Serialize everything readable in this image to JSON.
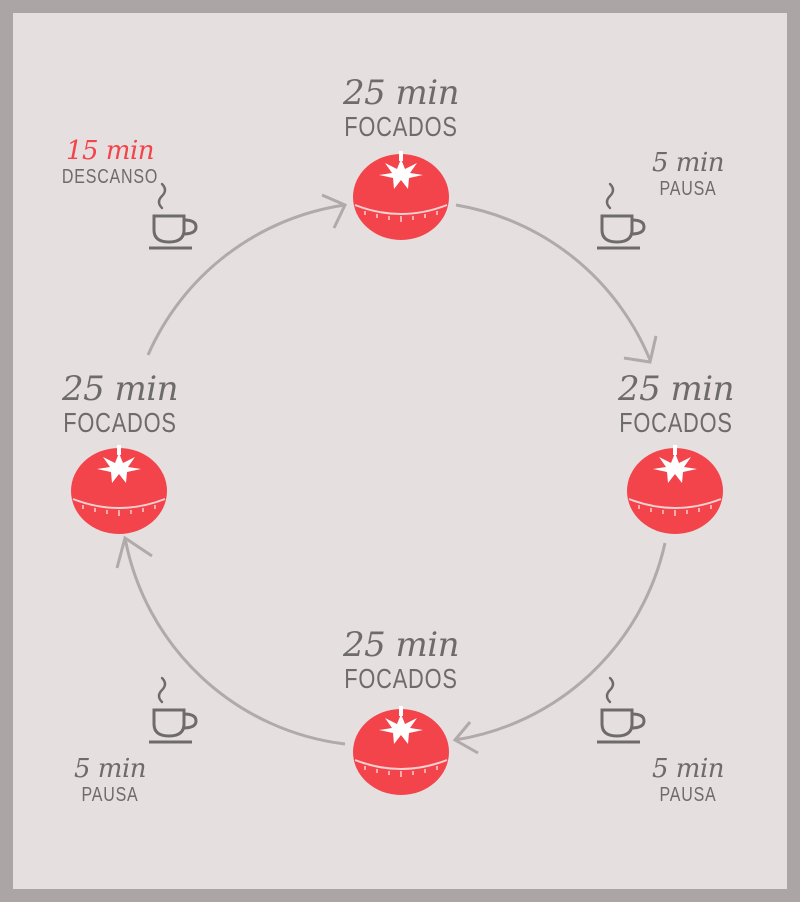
{
  "colors": {
    "background_outer": "#aca5a6",
    "background_inner": "#e6dfe0",
    "tomato": "#f2444a",
    "text": "#6e6b6c",
    "arrow": "#b0aaab",
    "accent": "#f2444a"
  },
  "focus_blocks": [
    {
      "time": "25 min",
      "label": "FOCADOS",
      "icon": "tomato-timer-icon"
    },
    {
      "time": "25 min",
      "label": "FOCADOS",
      "icon": "tomato-timer-icon"
    },
    {
      "time": "25 min",
      "label": "FOCADOS",
      "icon": "tomato-timer-icon"
    },
    {
      "time": "25 min",
      "label": "FOCADOS",
      "icon": "tomato-timer-icon"
    }
  ],
  "breaks": [
    {
      "time": "5 min",
      "label": "PAUSA",
      "icon": "coffee-cup-icon"
    },
    {
      "time": "5 min",
      "label": "PAUSA",
      "icon": "coffee-cup-icon"
    },
    {
      "time": "5 min",
      "label": "PAUSA",
      "icon": "coffee-cup-icon"
    },
    {
      "time": "15 min",
      "label": "DESCANSO",
      "icon": "coffee-cup-icon"
    }
  ]
}
